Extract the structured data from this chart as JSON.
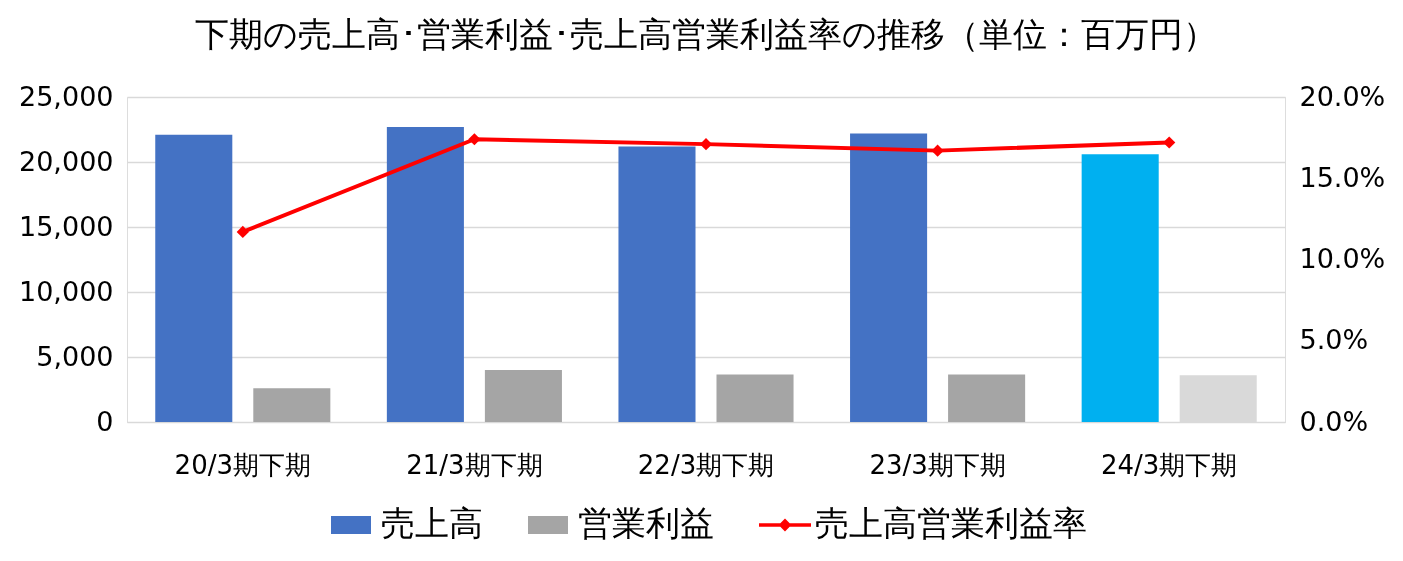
{
  "chart_data": {
    "type": "bar",
    "title": "下期の売上高･営業利益･売上高営業利益率の推移（単位：百万円）",
    "categories": [
      "20/3期下期",
      "21/3期下期",
      "22/3期下期",
      "23/3期下期",
      "24/3期下期"
    ],
    "series": [
      {
        "name": "売上高",
        "color": "#4472c4",
        "colors": [
          "#4472c4",
          "#4472c4",
          "#4472c4",
          "#4472c4",
          "#00b0f0"
        ],
        "values": [
          22100,
          22700,
          21200,
          22200,
          20600
        ]
      },
      {
        "name": "営業利益",
        "color": "#a5a5a5",
        "colors": [
          "#a5a5a5",
          "#a5a5a5",
          "#a5a5a5",
          "#a5a5a5",
          "#d9d9d9"
        ],
        "values": [
          2600,
          4000,
          3650,
          3650,
          3600
        ]
      },
      {
        "name": "売上高営業利益率",
        "type": "line",
        "axis": "y2",
        "color": "#ff0000",
        "values": [
          11.7,
          17.4,
          17.1,
          16.7,
          17.2
        ]
      }
    ],
    "ylim": [
      0,
      25000
    ],
    "yticks": [
      {
        "value": 0,
        "label": "0"
      },
      {
        "value": 5000,
        "label": "5,000"
      },
      {
        "value": 10000,
        "label": "10,000"
      },
      {
        "value": 15000,
        "label": "15,000"
      },
      {
        "value": 20000,
        "label": "20,000"
      },
      {
        "value": 25000,
        "label": "25,000"
      }
    ],
    "y2lim": [
      0,
      20
    ],
    "y2ticks": [
      {
        "value": 0,
        "label": "0.0%"
      },
      {
        "value": 5,
        "label": "5.0%"
      },
      {
        "value": 10,
        "label": "10.0%"
      },
      {
        "value": 15,
        "label": "15.0%"
      },
      {
        "value": 20,
        "label": "20.0%"
      }
    ],
    "grid": "y",
    "legend": "bottom",
    "marker": "diamond",
    "line_style": "solid"
  }
}
